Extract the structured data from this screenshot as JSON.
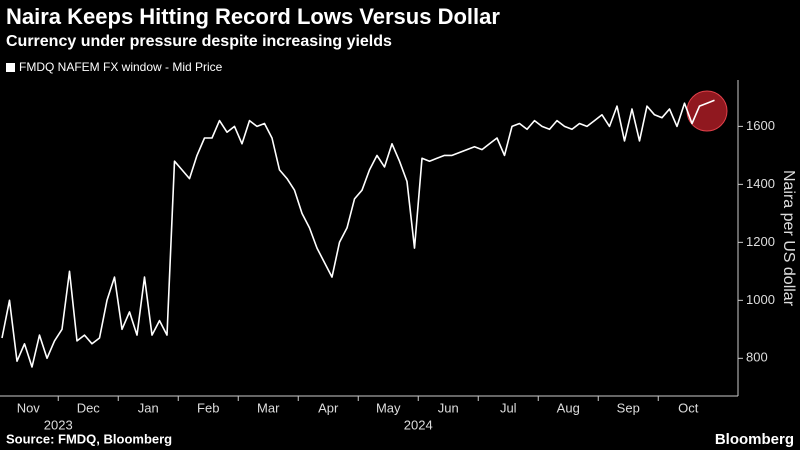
{
  "chart_data": {
    "type": "line",
    "title": "Naira Keeps Hitting Record Lows Versus Dollar",
    "subtitle": "Currency under pressure despite increasing yields",
    "y_label": "Naira per US dollar",
    "source": "Source: FMDQ, Bloomberg",
    "brand": "Bloomberg",
    "year_labels": [
      "2023",
      "2024"
    ],
    "categories": [
      "Nov",
      null,
      null,
      null,
      null,
      null,
      null,
      null,
      "Dec",
      null,
      null,
      null,
      null,
      null,
      null,
      null,
      "Jan",
      null,
      null,
      null,
      null,
      null,
      null,
      null,
      "Feb",
      null,
      null,
      null,
      null,
      null,
      null,
      null,
      "Mar",
      null,
      null,
      null,
      null,
      null,
      null,
      null,
      "Apr",
      null,
      null,
      null,
      null,
      null,
      null,
      null,
      "May",
      null,
      null,
      null,
      null,
      null,
      null,
      null,
      "Jun",
      null,
      null,
      null,
      null,
      null,
      null,
      null,
      "Jul",
      null,
      null,
      null,
      null,
      null,
      null,
      null,
      "Aug",
      null,
      null,
      null,
      null,
      null,
      null,
      null,
      "Sep",
      null,
      null,
      null,
      null,
      null,
      null,
      null,
      "Oct",
      null,
      null,
      null,
      null,
      null,
      null,
      null
    ],
    "series": [
      {
        "name": "FMDQ NAFEM FX window - Mid Price",
        "color": "#ffffff",
        "values": [
          870,
          1000,
          790,
          850,
          770,
          880,
          800,
          860,
          900,
          1100,
          860,
          880,
          850,
          870,
          1000,
          1080,
          900,
          960,
          880,
          1080,
          880,
          930,
          880,
          1480,
          1450,
          1420,
          1500,
          1560,
          1560,
          1620,
          1580,
          1600,
          1540,
          1620,
          1600,
          1610,
          1560,
          1450,
          1420,
          1380,
          1300,
          1250,
          1180,
          1130,
          1080,
          1200,
          1250,
          1350,
          1380,
          1450,
          1500,
          1460,
          1540,
          1480,
          1410,
          1180,
          1490,
          1480,
          1490,
          1500,
          1500,
          1510,
          1520,
          1530,
          1520,
          1540,
          1560,
          1500,
          1600,
          1610,
          1590,
          1620,
          1600,
          1590,
          1620,
          1600,
          1590,
          1610,
          1600,
          1620,
          1640,
          1600,
          1670,
          1550,
          1660,
          1550,
          1670,
          1640,
          1630,
          1660,
          1600,
          1680,
          1610,
          1670,
          1680,
          1690
        ]
      }
    ],
    "ylim": [
      670,
      1760
    ],
    "yticks": [
      800,
      1000,
      1200,
      1400,
      1600
    ],
    "grid": false
  }
}
